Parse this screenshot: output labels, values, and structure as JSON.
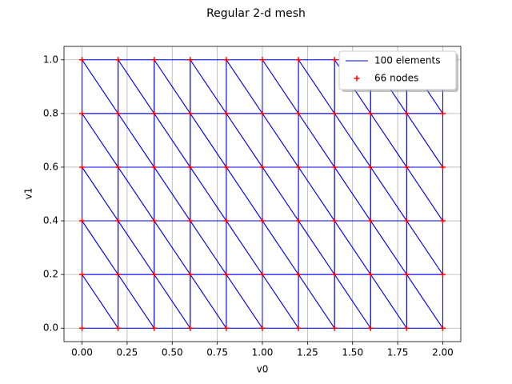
{
  "chart_data": {
    "type": "mesh",
    "title": "Regular 2-d mesh",
    "x_label": "v0",
    "y_label": "v1",
    "elements": {
      "name": "100 elements",
      "color": "#0000ff",
      "triangles": [
        [
          0,
          1,
          11
        ],
        [
          1,
          12,
          11
        ],
        [
          1,
          2,
          12
        ],
        [
          2,
          13,
          12
        ],
        [
          2,
          3,
          13
        ],
        [
          3,
          14,
          13
        ],
        [
          3,
          4,
          14
        ],
        [
          4,
          15,
          14
        ],
        [
          4,
          5,
          15
        ],
        [
          5,
          16,
          15
        ],
        [
          5,
          6,
          16
        ],
        [
          6,
          17,
          16
        ],
        [
          6,
          7,
          17
        ],
        [
          7,
          18,
          17
        ],
        [
          7,
          8,
          18
        ],
        [
          8,
          19,
          18
        ],
        [
          8,
          9,
          19
        ],
        [
          9,
          20,
          19
        ],
        [
          9,
          10,
          20
        ],
        [
          10,
          21,
          20
        ],
        [
          11,
          12,
          22
        ],
        [
          12,
          23,
          22
        ],
        [
          12,
          13,
          23
        ],
        [
          13,
          24,
          23
        ],
        [
          13,
          14,
          24
        ],
        [
          14,
          25,
          24
        ],
        [
          14,
          15,
          25
        ],
        [
          15,
          26,
          25
        ],
        [
          15,
          16,
          26
        ],
        [
          16,
          27,
          26
        ],
        [
          16,
          17,
          27
        ],
        [
          17,
          28,
          27
        ],
        [
          17,
          18,
          28
        ],
        [
          18,
          29,
          28
        ],
        [
          18,
          19,
          29
        ],
        [
          19,
          30,
          29
        ],
        [
          19,
          20,
          30
        ],
        [
          20,
          31,
          30
        ],
        [
          20,
          21,
          31
        ],
        [
          21,
          32,
          31
        ],
        [
          22,
          23,
          33
        ],
        [
          23,
          34,
          33
        ],
        [
          23,
          24,
          34
        ],
        [
          24,
          35,
          34
        ],
        [
          24,
          25,
          35
        ],
        [
          25,
          36,
          35
        ],
        [
          25,
          26,
          36
        ],
        [
          26,
          37,
          36
        ],
        [
          26,
          27,
          37
        ],
        [
          27,
          38,
          37
        ],
        [
          27,
          28,
          38
        ],
        [
          28,
          39,
          38
        ],
        [
          28,
          29,
          39
        ],
        [
          29,
          40,
          39
        ],
        [
          29,
          30,
          40
        ],
        [
          30,
          41,
          40
        ],
        [
          30,
          31,
          41
        ],
        [
          31,
          42,
          41
        ],
        [
          31,
          32,
          42
        ],
        [
          32,
          43,
          42
        ],
        [
          33,
          34,
          44
        ],
        [
          34,
          45,
          44
        ],
        [
          34,
          35,
          45
        ],
        [
          35,
          46,
          45
        ],
        [
          35,
          36,
          46
        ],
        [
          36,
          47,
          46
        ],
        [
          36,
          37,
          47
        ],
        [
          37,
          48,
          47
        ],
        [
          37,
          38,
          48
        ],
        [
          38,
          49,
          48
        ],
        [
          38,
          39,
          49
        ],
        [
          39,
          50,
          49
        ],
        [
          39,
          40,
          50
        ],
        [
          40,
          51,
          50
        ],
        [
          40,
          41,
          51
        ],
        [
          41,
          52,
          51
        ],
        [
          41,
          42,
          52
        ],
        [
          42,
          53,
          52
        ],
        [
          42,
          43,
          53
        ],
        [
          43,
          54,
          53
        ],
        [
          44,
          45,
          55
        ],
        [
          45,
          56,
          55
        ],
        [
          45,
          46,
          56
        ],
        [
          46,
          57,
          56
        ],
        [
          46,
          47,
          57
        ],
        [
          47,
          58,
          57
        ],
        [
          47,
          48,
          58
        ],
        [
          48,
          59,
          58
        ],
        [
          48,
          49,
          59
        ],
        [
          49,
          60,
          59
        ],
        [
          49,
          50,
          60
        ],
        [
          50,
          61,
          60
        ],
        [
          50,
          51,
          61
        ],
        [
          51,
          62,
          61
        ],
        [
          51,
          52,
          62
        ],
        [
          52,
          63,
          62
        ],
        [
          52,
          53,
          63
        ],
        [
          53,
          64,
          63
        ],
        [
          53,
          54,
          64
        ],
        [
          54,
          65,
          64
        ]
      ]
    },
    "nodes": {
      "name": "66 nodes",
      "color": "#ff0000",
      "marker": "+",
      "x": [
        0,
        0.2,
        0.4,
        0.6,
        0.8,
        1,
        1.2,
        1.4,
        1.6,
        1.8,
        2,
        0,
        0.2,
        0.4,
        0.6,
        0.8,
        1,
        1.2,
        1.4,
        1.6,
        1.8,
        2,
        0,
        0.2,
        0.4,
        0.6,
        0.8,
        1,
        1.2,
        1.4,
        1.6,
        1.8,
        2,
        0,
        0.2,
        0.4,
        0.6,
        0.8,
        1,
        1.2,
        1.4,
        1.6,
        1.8,
        2,
        0,
        0.2,
        0.4,
        0.6,
        0.8,
        1,
        1.2,
        1.4,
        1.6,
        1.8,
        2,
        0,
        0.2,
        0.4,
        0.6,
        0.8,
        1,
        1.2,
        1.4,
        1.6,
        1.8,
        2
      ],
      "y": [
        0,
        0,
        0,
        0,
        0,
        0,
        0,
        0,
        0,
        0,
        0,
        0.2,
        0.2,
        0.2,
        0.2,
        0.2,
        0.2,
        0.2,
        0.2,
        0.2,
        0.2,
        0.2,
        0.4,
        0.4,
        0.4,
        0.4,
        0.4,
        0.4,
        0.4,
        0.4,
        0.4,
        0.4,
        0.4,
        0.6,
        0.6,
        0.6,
        0.6,
        0.6,
        0.6,
        0.6,
        0.6,
        0.6,
        0.6,
        0.6,
        0.8,
        0.8,
        0.8,
        0.8,
        0.8,
        0.8,
        0.8,
        0.8,
        0.8,
        0.8,
        0.8,
        1,
        1,
        1,
        1,
        1,
        1,
        1,
        1,
        1,
        1,
        1
      ]
    },
    "xlim": [
      -0.1,
      2.1
    ],
    "ylim": [
      -0.05,
      1.05
    ],
    "xticks": [
      {
        "value": 0,
        "label": "0.00"
      },
      {
        "value": 0.25,
        "label": "0.25"
      },
      {
        "value": 0.5,
        "label": "0.50"
      },
      {
        "value": 0.75,
        "label": "0.75"
      },
      {
        "value": 1,
        "label": "1.00"
      },
      {
        "value": 1.25,
        "label": "1.25"
      },
      {
        "value": 1.5,
        "label": "1.50"
      },
      {
        "value": 1.75,
        "label": "1.75"
      },
      {
        "value": 2,
        "label": "2.00"
      }
    ],
    "yticks": [
      {
        "value": 0,
        "label": "0.0"
      },
      {
        "value": 0.2,
        "label": "0.2"
      },
      {
        "value": 0.4,
        "label": "0.4"
      },
      {
        "value": 0.6,
        "label": "0.6"
      },
      {
        "value": 0.8,
        "label": "0.8"
      },
      {
        "value": 1,
        "label": "1.0"
      }
    ],
    "grid": true,
    "legend": "upper right"
  }
}
